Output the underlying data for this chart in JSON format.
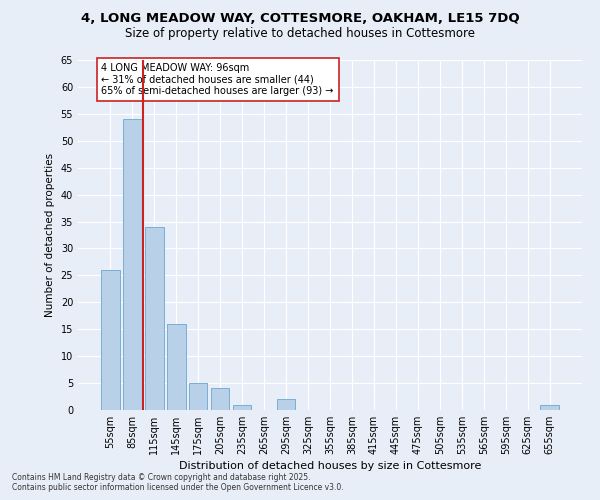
{
  "title_line1": "4, LONG MEADOW WAY, COTTESMORE, OAKHAM, LE15 7DQ",
  "title_line2": "Size of property relative to detached houses in Cottesmore",
  "xlabel": "Distribution of detached houses by size in Cottesmore",
  "ylabel": "Number of detached properties",
  "categories": [
    "55sqm",
    "85sqm",
    "115sqm",
    "145sqm",
    "175sqm",
    "205sqm",
    "235sqm",
    "265sqm",
    "295sqm",
    "325sqm",
    "355sqm",
    "385sqm",
    "415sqm",
    "445sqm",
    "475sqm",
    "505sqm",
    "535sqm",
    "565sqm",
    "595sqm",
    "625sqm",
    "655sqm"
  ],
  "values": [
    26,
    54,
    34,
    16,
    5,
    4,
    1,
    0,
    2,
    0,
    0,
    0,
    0,
    0,
    0,
    0,
    0,
    0,
    0,
    0,
    1
  ],
  "bar_color": "#b8d0e8",
  "bar_edge_color": "#7aaed4",
  "background_color": "#e8eef8",
  "grid_color": "#ffffff",
  "vline_x": 1.5,
  "vline_color": "#cc2222",
  "annotation_text": "4 LONG MEADOW WAY: 96sqm\n← 31% of detached houses are smaller (44)\n65% of semi-detached houses are larger (93) →",
  "annotation_box_color": "#ffffff",
  "annotation_box_edge": "#cc2222",
  "ylim": [
    0,
    65
  ],
  "yticks": [
    0,
    5,
    10,
    15,
    20,
    25,
    30,
    35,
    40,
    45,
    50,
    55,
    60,
    65
  ],
  "footer_line1": "Contains HM Land Registry data © Crown copyright and database right 2025.",
  "footer_line2": "Contains public sector information licensed under the Open Government Licence v3.0."
}
